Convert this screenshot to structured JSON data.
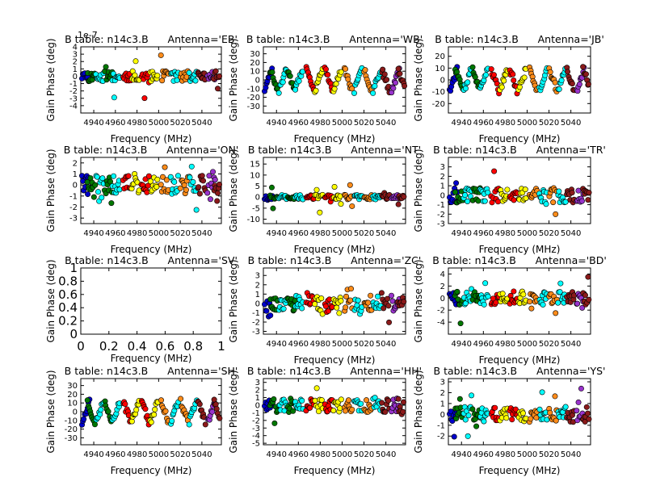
{
  "figure": {
    "offset_label": "1e-7"
  },
  "series_colors": [
    "#0000cc",
    "#007700",
    "#00ffff",
    "#ff0000",
    "#ffff00",
    "#ff8c1a",
    "#ff00ff",
    "#8b1a1a",
    "#9933cc"
  ],
  "chart_data": [
    {
      "type": "scatter",
      "title": "B table: n14c3.B      Antenna='EB'",
      "xlabel": "Frequency (MHz)",
      "ylabel": "Gain Phase (deg)",
      "xlim": [
        4928,
        5058
      ],
      "ylim": [
        -5,
        4
      ],
      "xticks": [
        4940,
        4960,
        4980,
        5000,
        5020,
        5040
      ],
      "yticks": [
        -4,
        -3,
        -2,
        -1,
        0,
        1,
        2,
        3,
        4
      ],
      "pattern": "flat",
      "spread": 1.0,
      "seed": 11
    },
    {
      "type": "scatter",
      "title": "B table: n14c3.B      Antenna='WB'",
      "xlabel": "Frequency (MHz)",
      "ylabel": "Gain Phase (deg)",
      "xlim": [
        4928,
        5058
      ],
      "ylim": [
        -38,
        38
      ],
      "xticks": [
        4940,
        4960,
        4980,
        5000,
        5020,
        5040
      ],
      "yticks": [
        -30,
        -20,
        -10,
        0,
        10,
        20,
        30
      ],
      "pattern": "wave",
      "spread": 12,
      "seed": 23
    },
    {
      "type": "scatter",
      "title": "B table: n14c3.B      Antenna='JB'",
      "xlabel": "Frequency (MHz)",
      "ylabel": "Gain Phase (deg)",
      "xlim": [
        4928,
        5058
      ],
      "ylim": [
        -28,
        28
      ],
      "xticks": [
        4940,
        4960,
        4980,
        5000,
        5020,
        5040
      ],
      "yticks": [
        -20,
        -10,
        0,
        10,
        20
      ],
      "pattern": "wave",
      "spread": 9,
      "seed": 37
    },
    {
      "type": "scatter",
      "title": "B table: n14c3.B      Antenna='ON'",
      "xlabel": "Frequency (MHz)",
      "ylabel": "Gain Phase (deg)",
      "xlim": [
        4928,
        5058
      ],
      "ylim": [
        -3.5,
        2.5
      ],
      "xticks": [
        4940,
        4960,
        4980,
        5000,
        5020,
        5040
      ],
      "yticks": [
        -3,
        -2,
        -1,
        0,
        1,
        2
      ],
      "pattern": "flat",
      "spread": 1.2,
      "seed": 41
    },
    {
      "type": "scatter",
      "title": "B table: n14c3.B      Antenna='NT'",
      "xlabel": "Frequency (MHz)",
      "ylabel": "Gain Phase (deg)",
      "xlim": [
        4928,
        5058
      ],
      "ylim": [
        -12,
        18
      ],
      "xticks": [
        4940,
        4960,
        4980,
        5000,
        5020,
        5040
      ],
      "yticks": [
        -10,
        -5,
        0,
        5,
        10,
        15
      ],
      "pattern": "flat",
      "spread": 1.5,
      "seed": 53
    },
    {
      "type": "scatter",
      "title": "B table: n14c3.B      Antenna='TR'",
      "xlabel": "Frequency (MHz)",
      "ylabel": "Gain Phase (deg)",
      "xlim": [
        4928,
        5058
      ],
      "ylim": [
        -3,
        4
      ],
      "xticks": [
        4940,
        4960,
        4980,
        5000,
        5020,
        5040
      ],
      "yticks": [
        -3,
        -2,
        -1,
        0,
        1,
        2,
        3
      ],
      "pattern": "flat",
      "spread": 1.1,
      "seed": 67
    },
    {
      "type": "scatter",
      "title": "B table: n14c3.B      Antenna='SV'",
      "xlabel": "Frequency (MHz)",
      "ylabel": "Gain Phase (deg)",
      "xlim": [
        0,
        1
      ],
      "ylim": [
        0,
        1
      ],
      "xticks": [
        0.0,
        0.2,
        0.4,
        0.6,
        0.8,
        1.0
      ],
      "yticks": [
        0.0,
        0.2,
        0.4,
        0.6,
        0.8,
        1.0
      ],
      "pattern": "empty",
      "spread": 0,
      "seed": 0
    },
    {
      "type": "scatter",
      "title": "B table: n14c3.B      Antenna='ZC'",
      "xlabel": "Frequency (MHz)",
      "ylabel": "Gain Phase (deg)",
      "xlim": [
        4928,
        5058
      ],
      "ylim": [
        -3.3,
        3.8
      ],
      "xticks": [
        4940,
        4960,
        4980,
        5000,
        5020,
        5040
      ],
      "yticks": [
        -3,
        -2,
        -1,
        0,
        1,
        2,
        3
      ],
      "pattern": "flat",
      "spread": 1.2,
      "seed": 79
    },
    {
      "type": "scatter",
      "title": "B table: n14c3.B      Antenna='BD'",
      "xlabel": "Frequency (MHz)",
      "ylabel": "Gain Phase (deg)",
      "xlim": [
        4928,
        5058
      ],
      "ylim": [
        -6,
        5
      ],
      "xticks": [
        4940,
        4960,
        4980,
        5000,
        5020,
        5040
      ],
      "yticks": [
        -4,
        -2,
        0,
        2,
        4
      ],
      "pattern": "flat",
      "spread": 1.6,
      "seed": 83
    },
    {
      "type": "scatter",
      "title": "B table: n14c3.B      Antenna='SH'",
      "xlabel": "Frequency (MHz)",
      "ylabel": "Gain Phase (deg)",
      "xlim": [
        4928,
        5058
      ],
      "ylim": [
        -38,
        38
      ],
      "xticks": [
        4940,
        4960,
        4980,
        5000,
        5020,
        5040
      ],
      "yticks": [
        -30,
        -20,
        -10,
        0,
        10,
        20,
        30
      ],
      "pattern": "wave",
      "spread": 12,
      "seed": 97
    },
    {
      "type": "scatter",
      "title": "B table: n14c3.B      Antenna='HH'",
      "xlabel": "Frequency (MHz)",
      "ylabel": "Gain Phase (deg)",
      "xlim": [
        4928,
        5058
      ],
      "ylim": [
        -5.2,
        3.5
      ],
      "xticks": [
        4940,
        4960,
        4980,
        5000,
        5020,
        5040
      ],
      "yticks": [
        -5,
        -4,
        -3,
        -2,
        -1,
        0,
        1,
        2,
        3
      ],
      "pattern": "flat",
      "spread": 1.3,
      "seed": 101
    },
    {
      "type": "scatter",
      "title": "B table: n14c3.B      Antenna='YS'",
      "xlabel": "Frequency (MHz)",
      "ylabel": "Gain Phase (deg)",
      "xlim": [
        4928,
        5058
      ],
      "ylim": [
        -2.8,
        3.3
      ],
      "xticks": [
        4940,
        4960,
        4980,
        5000,
        5020,
        5040
      ],
      "yticks": [
        -2,
        -1,
        0,
        1,
        2,
        3
      ],
      "pattern": "flat",
      "spread": 1.0,
      "seed": 113
    }
  ]
}
